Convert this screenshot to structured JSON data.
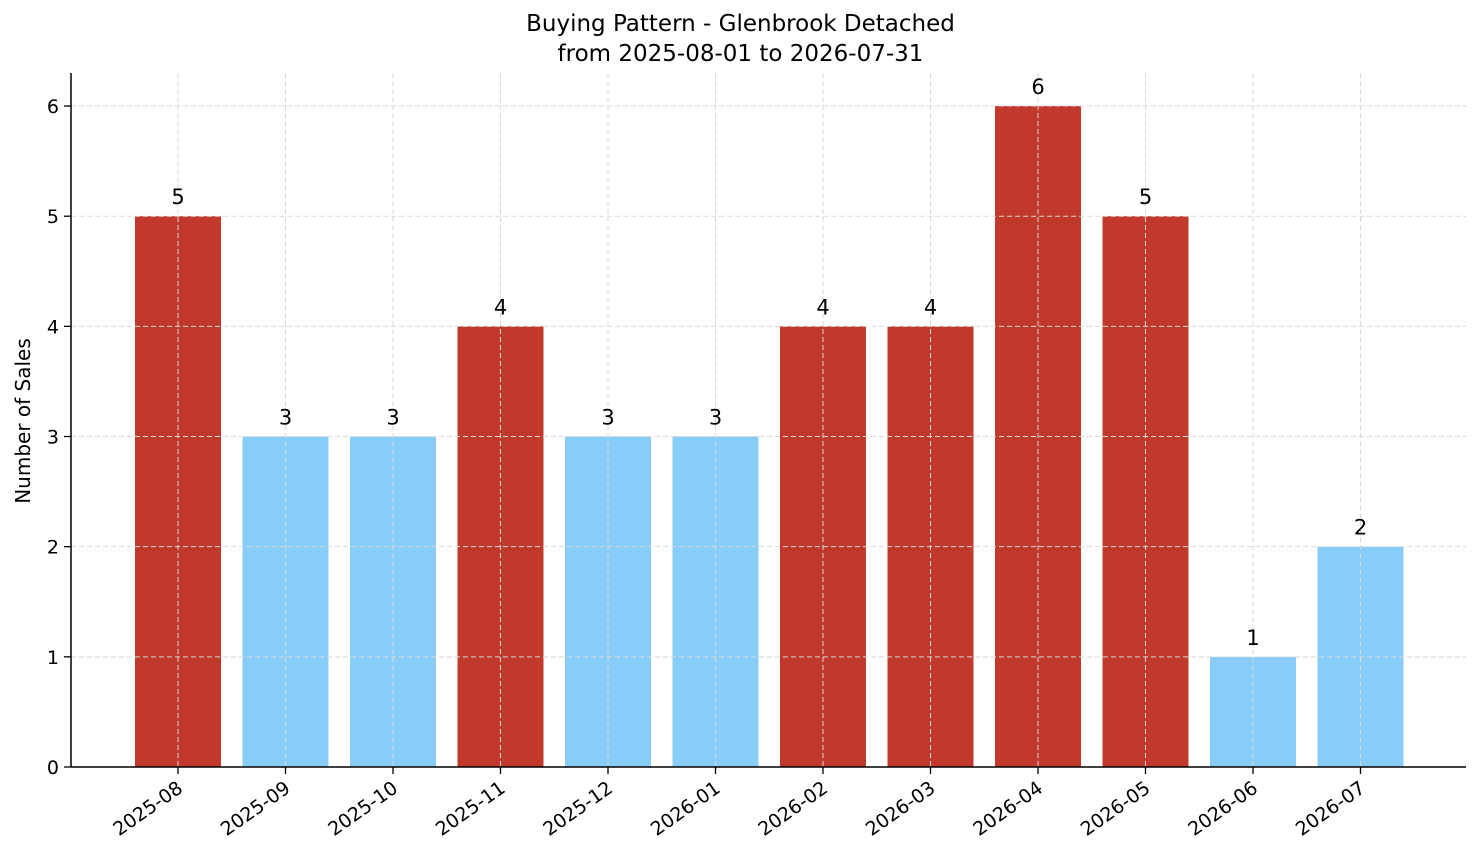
{
  "chart_data": {
    "type": "bar",
    "title": "Buying Pattern - Glenbrook Detached",
    "subtitle": "from 2025-08-01 to 2026-07-31",
    "xlabel": "",
    "ylabel": "Number of Sales",
    "categories": [
      "2025-08",
      "2025-09",
      "2025-10",
      "2025-11",
      "2025-12",
      "2026-01",
      "2026-02",
      "2026-03",
      "2026-04",
      "2026-05",
      "2026-06",
      "2026-07"
    ],
    "values": [
      5,
      3,
      3,
      4,
      3,
      3,
      4,
      4,
      6,
      5,
      1,
      2
    ],
    "ylim": [
      0,
      6.3
    ],
    "yticks": [
      0,
      1,
      2,
      3,
      4,
      5,
      6
    ],
    "grid": true,
    "legend": "none",
    "colors": {
      "high": "#c0392b",
      "low": "#87cdf7",
      "grid": "#d9d9d9",
      "axis": "#000000"
    },
    "high_threshold": 4
  }
}
